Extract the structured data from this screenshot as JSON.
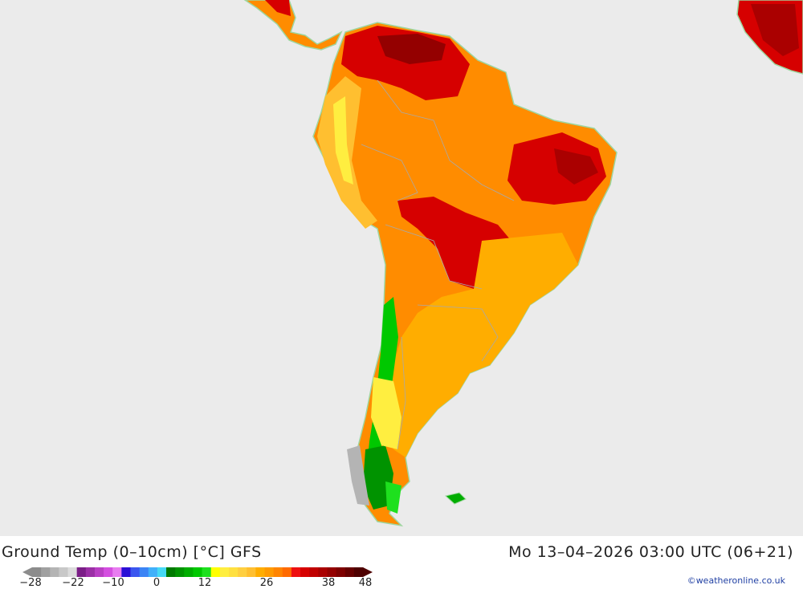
{
  "header": {
    "title": "Ground Temp (0–10cm) [°C] GFS",
    "timestamp": "Mo 13–04–2026 03:00 UTC (06+21)"
  },
  "credit": "©weatheronline.co.uk",
  "map": {
    "background_color": "#ebebeb",
    "land_color": "#ff8c00",
    "coast_color": "#9fd69f"
  },
  "legend": {
    "colors": [
      "#8c8c8c",
      "#a0a0a0",
      "#b4b4b4",
      "#c8c8c8",
      "#dcdcdc",
      "#7b1e87",
      "#9b2fa6",
      "#b93fc4",
      "#d44fe0",
      "#e87cf0",
      "#2b0fd6",
      "#3b56ef",
      "#3b84f5",
      "#40b0fa",
      "#45d9f5",
      "#007a00",
      "#009300",
      "#00ad00",
      "#00c800",
      "#1ee01e",
      "#ffff00",
      "#ffee40",
      "#ffe040",
      "#ffcf40",
      "#ffbf30",
      "#ffad00",
      "#ff9a00",
      "#ff8400",
      "#ff6a00",
      "#ee1010",
      "#d60000",
      "#c00000",
      "#aa0000",
      "#940000",
      "#7e0000",
      "#660000",
      "#4e0000"
    ],
    "tick_labels": [
      "−28",
      "−22",
      "−10",
      "0",
      "12",
      "26",
      "38",
      "48"
    ]
  }
}
